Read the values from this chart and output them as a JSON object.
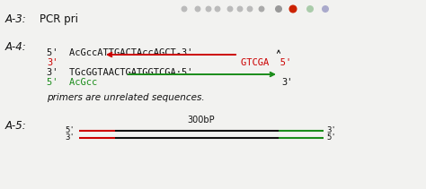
{
  "colors": {
    "black": "#111111",
    "red": "#cc0000",
    "green": "#1a8c1a",
    "bg": "#f2f2f0"
  },
  "a3_text": "A-3:",
  "a3_pcr": "PCR pri",
  "a4_text": "A-4:",
  "a5_text": "A-5:",
  "seq1": "5'  AcGccATTGACTAccAGCT-3'",
  "seq1_red3": "3'",
  "seq1_red_seq": "GTCGA  5'",
  "seq3": "3'  TGcGGTAACTGATGGTCGA·5'",
  "seq4_green": "5'  AcGcc",
  "seq4_end": "3'",
  "note": "primers are unrelated sequences.",
  "a5_bp": "300bP",
  "toolbar_x": [
    205,
    220,
    232,
    242,
    256,
    267,
    278,
    291,
    310,
    326,
    345,
    362
  ],
  "toolbar_colors": [
    "#bbbbbb",
    "#bbbbbb",
    "#bbbbbb",
    "#bbbbbb",
    "#bbbbbb",
    "#bbbbbb",
    "#bbbbbb",
    "#aaaaaa",
    "#999999",
    "#cc2200",
    "#aaccaa",
    "#aaaacc"
  ],
  "toolbar_sizes": [
    5,
    5,
    5,
    5,
    5,
    5,
    5,
    5,
    6,
    7,
    6,
    6
  ]
}
